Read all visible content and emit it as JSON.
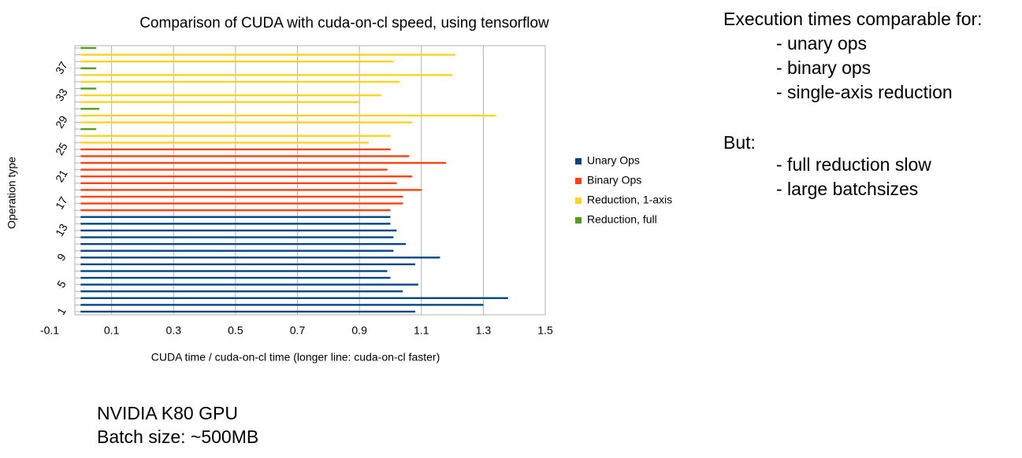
{
  "chart_data": {
    "type": "bar",
    "orientation": "horizontal",
    "title": "Comparison of CUDA with cuda-on-cl speed, using tensorflow",
    "xlabel": "CUDA time / cuda-on-cl time (longer line: cuda-on-cl faster)",
    "ylabel": "Operation type",
    "categories": [
      "1",
      null,
      null,
      null,
      "5",
      null,
      null,
      null,
      "9",
      null,
      null,
      null,
      "13",
      null,
      null,
      null,
      "17",
      null,
      null,
      null,
      "21",
      null,
      null,
      null,
      "25",
      null,
      null,
      null,
      "29",
      null,
      null,
      null,
      "33",
      null,
      null,
      null,
      "37",
      null,
      null,
      null
    ],
    "series": [
      {
        "name": "Unary Ops",
        "color": "#004586",
        "values": [
          1.08,
          1.3,
          1.38,
          1.04,
          1.09,
          1.0,
          0.99,
          1.08,
          1.16,
          1.01,
          1.05,
          1.01,
          1.02,
          1.0,
          1.0,
          null,
          null,
          null,
          null,
          null,
          null,
          null,
          null,
          null,
          null,
          null,
          null,
          null,
          null,
          null,
          null,
          null,
          null,
          null,
          null,
          null,
          null,
          null,
          null,
          null
        ]
      },
      {
        "name": "Binary Ops",
        "color": "#ff420e",
        "values": [
          null,
          null,
          null,
          null,
          null,
          null,
          null,
          null,
          null,
          null,
          null,
          null,
          null,
          null,
          null,
          1.0,
          1.04,
          1.04,
          1.1,
          1.02,
          1.07,
          0.99,
          1.18,
          1.06,
          1.0,
          null,
          null,
          null,
          null,
          null,
          null,
          null,
          null,
          null,
          null,
          null,
          null,
          null,
          null,
          null
        ]
      },
      {
        "name": "Reduction, 1-axis",
        "color": "#ffd320",
        "values": [
          null,
          null,
          null,
          null,
          null,
          null,
          null,
          null,
          null,
          null,
          null,
          null,
          null,
          null,
          null,
          null,
          null,
          null,
          null,
          null,
          null,
          null,
          null,
          null,
          null,
          0.93,
          1.0,
          null,
          1.07,
          1.34,
          null,
          0.9,
          0.97,
          null,
          1.03,
          1.2,
          null,
          1.01,
          1.21,
          null
        ]
      },
      {
        "name": "Reduction, full",
        "color": "#579d1c",
        "values": [
          null,
          null,
          null,
          null,
          null,
          null,
          null,
          null,
          null,
          null,
          null,
          null,
          null,
          null,
          null,
          null,
          null,
          null,
          null,
          null,
          null,
          null,
          null,
          null,
          null,
          null,
          null,
          0.05,
          null,
          null,
          0.06,
          null,
          null,
          0.05,
          null,
          null,
          0.05,
          null,
          null,
          0.05
        ]
      }
    ],
    "xlim": [
      -0.1,
      1.5
    ],
    "xticks": [
      -0.1,
      0.1,
      0.3,
      0.5,
      0.7,
      0.9,
      1.1,
      1.3,
      1.5
    ],
    "grid": true,
    "legend": "right"
  },
  "notes": {
    "comparable_heading": "Execution times comparable for:",
    "comparable": [
      "- unary ops",
      "- binary ops",
      "- single-axis reduction"
    ],
    "but_heading": "But:",
    "but": [
      "- full reduction slow",
      "- large batchsizes"
    ]
  },
  "footer": [
    "NVIDIA K80 GPU",
    "Batch size: ~500MB"
  ]
}
